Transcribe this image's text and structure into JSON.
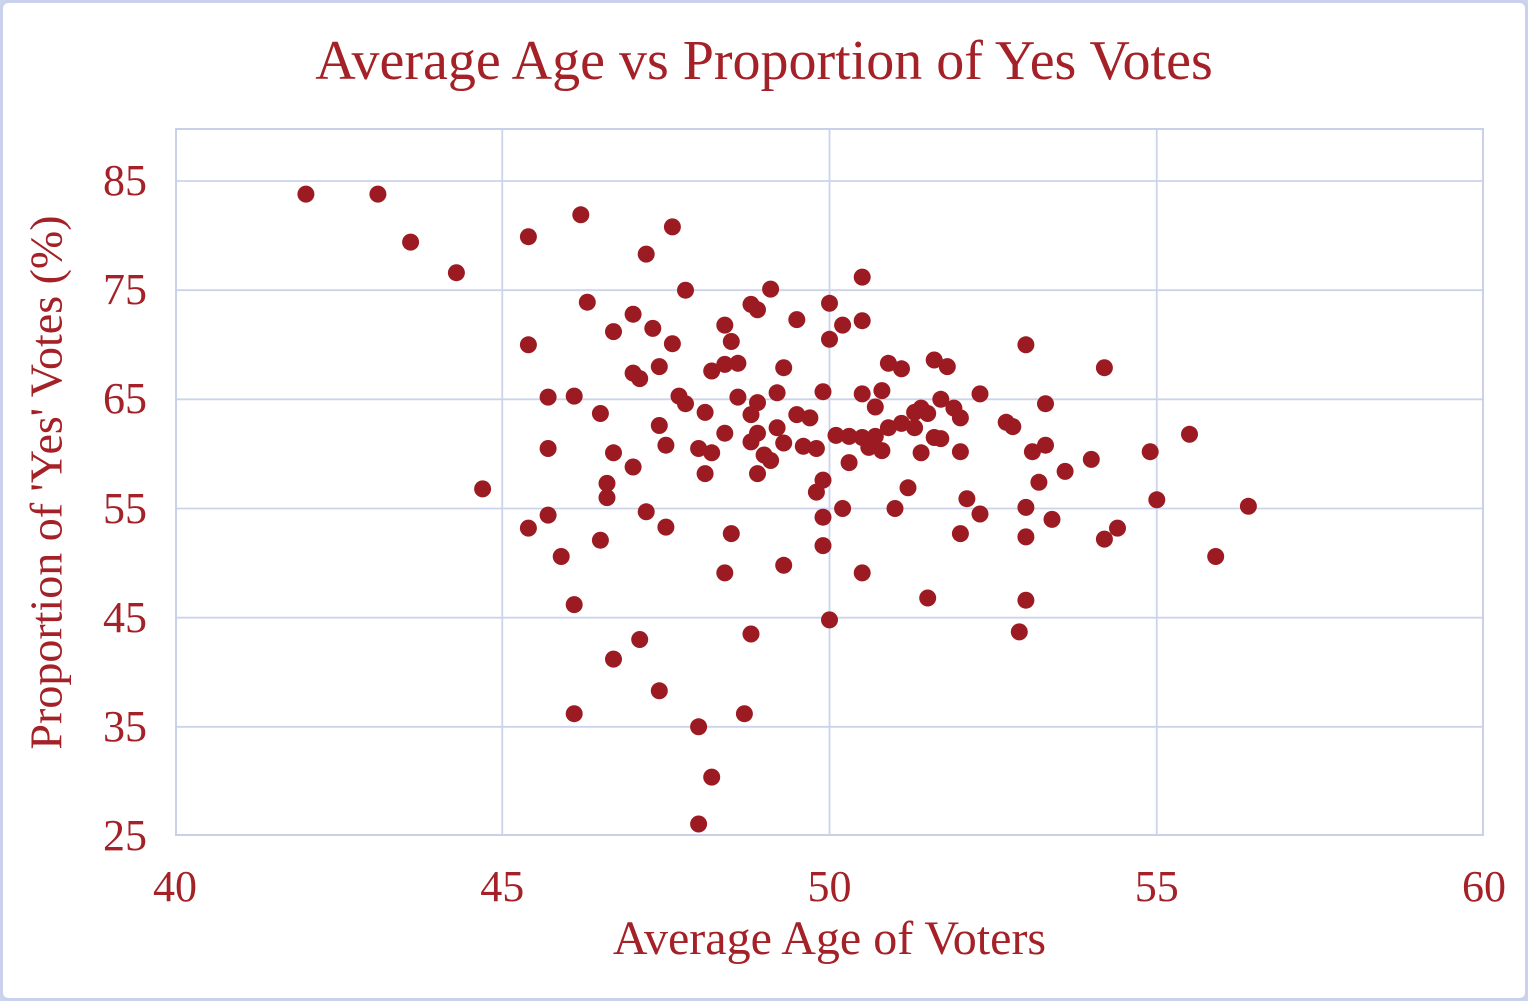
{
  "chart_data": {
    "type": "scatter",
    "title": "Average Age vs Proportion of Yes Votes",
    "xlabel": "Average Age of Voters",
    "ylabel": "Proportion of 'Yes' Votes (%)",
    "xlim": [
      40,
      60
    ],
    "ylim": [
      25,
      85
    ],
    "x_ticks": [
      40,
      45,
      50,
      55,
      60
    ],
    "y_ticks": [
      85,
      75,
      65,
      55,
      45,
      35,
      25
    ],
    "grid": true,
    "legend": "none",
    "marker_color": "#9c1b22",
    "text_color": "#a32127",
    "gridline_color": "#ccd3eb",
    "plot_border_color": "#c9d1e8",
    "points": [
      [
        42.0,
        83.8
      ],
      [
        43.1,
        83.8
      ],
      [
        43.6,
        79.4
      ],
      [
        44.3,
        76.6
      ],
      [
        45.4,
        79.9
      ],
      [
        46.2,
        81.9
      ],
      [
        47.6,
        80.8
      ],
      [
        47.2,
        78.3
      ],
      [
        47.8,
        75.0
      ],
      [
        49.1,
        75.1
      ],
      [
        46.3,
        73.9
      ],
      [
        48.8,
        73.7
      ],
      [
        48.9,
        73.2
      ],
      [
        50.0,
        73.8
      ],
      [
        47.0,
        72.8
      ],
      [
        46.7,
        71.2
      ],
      [
        47.3,
        71.5
      ],
      [
        48.4,
        71.8
      ],
      [
        49.5,
        72.3
      ],
      [
        47.6,
        70.1
      ],
      [
        48.5,
        70.3
      ],
      [
        45.4,
        70.0
      ],
      [
        50.0,
        70.5
      ],
      [
        50.5,
        76.2
      ],
      [
        50.2,
        71.8
      ],
      [
        50.5,
        72.2
      ],
      [
        53.0,
        70.0
      ],
      [
        54.2,
        67.9
      ],
      [
        50.9,
        68.3
      ],
      [
        51.1,
        67.8
      ],
      [
        51.6,
        68.6
      ],
      [
        51.8,
        68.0
      ],
      [
        44.7,
        56.8
      ],
      [
        47.0,
        67.4
      ],
      [
        47.1,
        66.9
      ],
      [
        47.4,
        68.0
      ],
      [
        48.2,
        67.6
      ],
      [
        48.4,
        68.2
      ],
      [
        48.6,
        68.3
      ],
      [
        49.3,
        67.9
      ],
      [
        45.7,
        65.2
      ],
      [
        46.1,
        65.3
      ],
      [
        46.5,
        63.7
      ],
      [
        47.7,
        65.3
      ],
      [
        47.8,
        64.6
      ],
      [
        48.1,
        63.8
      ],
      [
        48.6,
        65.2
      ],
      [
        48.9,
        64.7
      ],
      [
        48.8,
        63.6
      ],
      [
        49.2,
        65.6
      ],
      [
        49.5,
        63.6
      ],
      [
        49.7,
        63.3
      ],
      [
        49.9,
        65.7
      ],
      [
        47.4,
        62.6
      ],
      [
        48.4,
        61.9
      ],
      [
        48.8,
        61.1
      ],
      [
        48.9,
        61.9
      ],
      [
        49.2,
        62.4
      ],
      [
        45.7,
        60.5
      ],
      [
        46.7,
        60.1
      ],
      [
        47.5,
        60.8
      ],
      [
        48.0,
        60.5
      ],
      [
        48.2,
        60.1
      ],
      [
        49.3,
        61.0
      ],
      [
        49.6,
        60.7
      ],
      [
        49.8,
        60.5
      ],
      [
        49.0,
        59.9
      ],
      [
        49.1,
        59.4
      ],
      [
        47.0,
        58.8
      ],
      [
        48.1,
        58.2
      ],
      [
        48.9,
        58.2
      ],
      [
        49.9,
        57.6
      ],
      [
        49.8,
        56.5
      ],
      [
        46.6,
        57.3
      ],
      [
        46.6,
        56.0
      ],
      [
        45.7,
        54.4
      ],
      [
        45.4,
        53.2
      ],
      [
        47.2,
        54.7
      ],
      [
        47.5,
        53.3
      ],
      [
        46.5,
        52.1
      ],
      [
        45.9,
        50.6
      ],
      [
        48.5,
        52.7
      ],
      [
        49.9,
        54.2
      ],
      [
        49.9,
        51.6
      ],
      [
        48.4,
        49.1
      ],
      [
        49.3,
        49.8
      ],
      [
        50.5,
        65.5
      ],
      [
        50.8,
        65.8
      ],
      [
        50.7,
        64.3
      ],
      [
        51.7,
        65.0
      ],
      [
        51.9,
        64.2
      ],
      [
        52.0,
        63.3
      ],
      [
        52.3,
        65.5
      ],
      [
        53.3,
        64.6
      ],
      [
        51.3,
        63.8
      ],
      [
        51.4,
        64.2
      ],
      [
        51.5,
        63.7
      ],
      [
        50.9,
        62.4
      ],
      [
        51.1,
        62.8
      ],
      [
        51.3,
        62.4
      ],
      [
        52.7,
        62.9
      ],
      [
        52.8,
        62.5
      ],
      [
        50.1,
        61.7
      ],
      [
        50.3,
        61.6
      ],
      [
        50.5,
        61.5
      ],
      [
        50.7,
        61.6
      ],
      [
        50.8,
        60.3
      ],
      [
        50.6,
        60.6
      ],
      [
        50.3,
        59.2
      ],
      [
        51.4,
        60.1
      ],
      [
        51.6,
        61.5
      ],
      [
        51.7,
        61.4
      ],
      [
        52.0,
        60.2
      ],
      [
        53.1,
        60.2
      ],
      [
        53.3,
        60.8
      ],
      [
        53.6,
        58.4
      ],
      [
        54.0,
        59.5
      ],
      [
        54.9,
        60.2
      ],
      [
        53.2,
        57.4
      ],
      [
        51.2,
        56.9
      ],
      [
        52.1,
        55.9
      ],
      [
        50.2,
        55.0
      ],
      [
        51.0,
        55.0
      ],
      [
        53.0,
        55.1
      ],
      [
        52.3,
        54.5
      ],
      [
        53.4,
        54.0
      ],
      [
        55.0,
        55.8
      ],
      [
        52.0,
        52.7
      ],
      [
        53.0,
        52.4
      ],
      [
        54.4,
        53.2
      ],
      [
        54.2,
        52.2
      ],
      [
        50.5,
        49.1
      ],
      [
        51.5,
        46.8
      ],
      [
        53.0,
        46.6
      ],
      [
        55.5,
        61.8
      ],
      [
        56.4,
        55.2
      ],
      [
        55.9,
        50.6
      ],
      [
        46.1,
        46.2
      ],
      [
        47.1,
        43.0
      ],
      [
        46.7,
        41.2
      ],
      [
        48.8,
        43.5
      ],
      [
        47.4,
        38.3
      ],
      [
        46.1,
        36.2
      ],
      [
        48.7,
        36.2
      ],
      [
        48.0,
        35.0
      ],
      [
        50.0,
        44.8
      ],
      [
        48.2,
        30.4
      ],
      [
        48.0,
        26.1
      ],
      [
        52.9,
        43.7
      ]
    ]
  }
}
